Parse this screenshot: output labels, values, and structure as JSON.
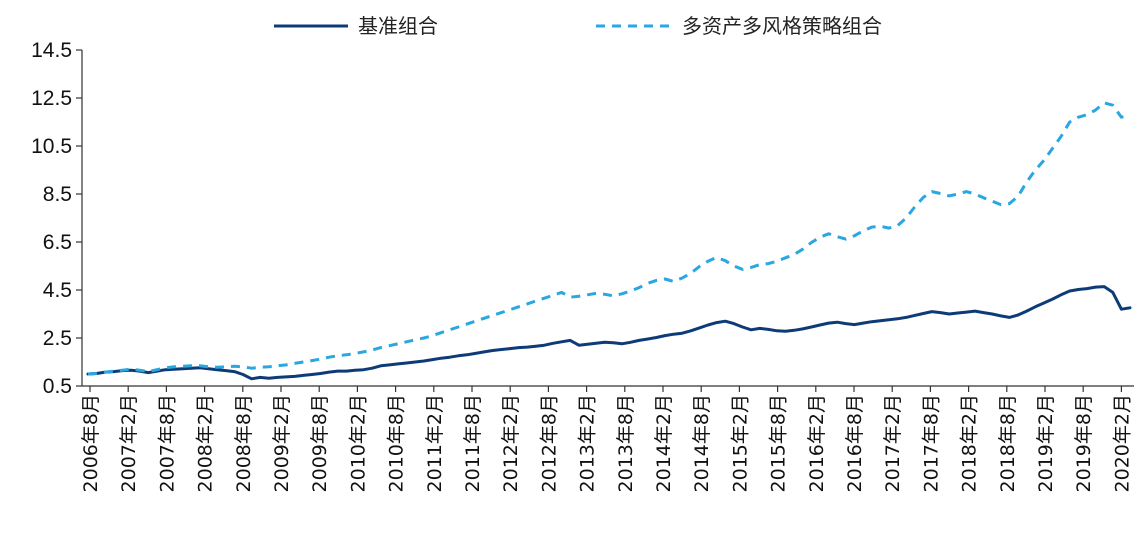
{
  "chart_data": {
    "type": "line",
    "legend_position": "top-center",
    "grid": false,
    "ylim": [
      0.5,
      14.5
    ],
    "yticks": [
      "14.5",
      "12.5",
      "10.5",
      "8.5",
      "6.5",
      "4.5",
      "2.5",
      "0.5"
    ],
    "x_tick_labels": [
      "2006年8月",
      "2007年2月",
      "2007年8月",
      "2008年2月",
      "2008年8月",
      "2009年2月",
      "2009年8月",
      "2010年2月",
      "2010年8月",
      "2011年2月",
      "2011年8月",
      "2012年2月",
      "2012年8月",
      "2013年2月",
      "2013年8月",
      "2014年2月",
      "2014年8月",
      "2015年2月",
      "2015年8月",
      "2016年2月",
      "2016年8月",
      "2017年2月",
      "2017年8月",
      "2018年2月",
      "2018年8月",
      "2019年2月",
      "2019年8月",
      "2020年2月"
    ],
    "series": [
      {
        "name": "基准组合",
        "color": "#0d3b78",
        "style": "solid",
        "values": [
          1.0,
          1.02,
          1.08,
          1.1,
          1.14,
          1.16,
          1.12,
          1.06,
          1.12,
          1.18,
          1.2,
          1.22,
          1.24,
          1.26,
          1.22,
          1.18,
          1.14,
          1.1,
          0.98,
          0.8,
          0.86,
          0.82,
          0.86,
          0.88,
          0.9,
          0.94,
          0.98,
          1.02,
          1.08,
          1.12,
          1.12,
          1.16,
          1.18,
          1.24,
          1.34,
          1.38,
          1.42,
          1.46,
          1.5,
          1.54,
          1.6,
          1.66,
          1.7,
          1.76,
          1.8,
          1.86,
          1.92,
          1.98,
          2.02,
          2.06,
          2.1,
          2.12,
          2.16,
          2.2,
          2.28,
          2.34,
          2.4,
          2.2,
          2.24,
          2.28,
          2.32,
          2.3,
          2.26,
          2.32,
          2.4,
          2.46,
          2.52,
          2.6,
          2.66,
          2.7,
          2.8,
          2.92,
          3.04,
          3.14,
          3.2,
          3.1,
          2.96,
          2.84,
          2.9,
          2.86,
          2.8,
          2.78,
          2.82,
          2.88,
          2.96,
          3.04,
          3.12,
          3.16,
          3.1,
          3.06,
          3.12,
          3.18,
          3.22,
          3.26,
          3.3,
          3.36,
          3.44,
          3.52,
          3.6,
          3.56,
          3.5,
          3.54,
          3.58,
          3.62,
          3.56,
          3.5,
          3.42,
          3.36,
          3.46,
          3.62,
          3.8,
          3.96,
          4.12,
          4.3,
          4.46,
          4.52,
          4.56,
          4.62,
          4.64,
          4.4,
          3.7,
          3.76
        ]
      },
      {
        "name": "多资产多风格策略组合",
        "color": "#2aa6e0",
        "style": "dashed",
        "values": [
          1.0,
          1.02,
          1.08,
          1.12,
          1.16,
          1.2,
          1.16,
          1.1,
          1.18,
          1.26,
          1.3,
          1.32,
          1.34,
          1.34,
          1.3,
          1.28,
          1.3,
          1.32,
          1.3,
          1.24,
          1.28,
          1.3,
          1.34,
          1.38,
          1.44,
          1.5,
          1.56,
          1.62,
          1.7,
          1.76,
          1.8,
          1.86,
          1.92,
          2.0,
          2.1,
          2.18,
          2.26,
          2.34,
          2.42,
          2.5,
          2.6,
          2.72,
          2.84,
          2.96,
          3.08,
          3.2,
          3.32,
          3.44,
          3.56,
          3.68,
          3.8,
          3.92,
          4.04,
          4.16,
          4.28,
          4.4,
          4.2,
          4.24,
          4.3,
          4.36,
          4.32,
          4.26,
          4.34,
          4.46,
          4.6,
          4.78,
          4.9,
          4.96,
          4.86,
          5.0,
          5.2,
          5.48,
          5.7,
          5.86,
          5.72,
          5.5,
          5.36,
          5.44,
          5.56,
          5.6,
          5.7,
          5.84,
          5.98,
          6.2,
          6.48,
          6.7,
          6.84,
          6.72,
          6.62,
          6.76,
          6.96,
          7.12,
          7.16,
          7.08,
          7.18,
          7.5,
          7.96,
          8.36,
          8.6,
          8.52,
          8.42,
          8.5,
          8.6,
          8.5,
          8.34,
          8.2,
          8.06,
          8.1,
          8.4,
          9.0,
          9.5,
          9.9,
          10.4,
          10.9,
          11.5,
          11.7,
          11.8,
          12.0,
          12.3,
          12.2,
          11.7,
          11.8
        ]
      }
    ]
  }
}
